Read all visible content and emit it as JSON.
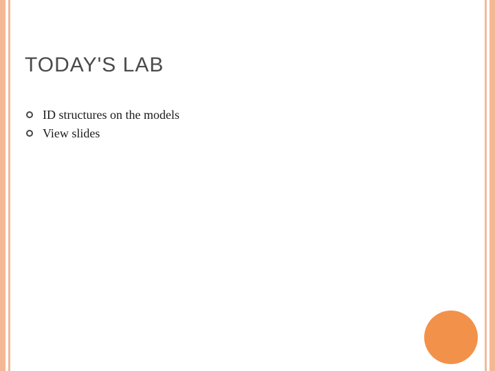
{
  "slide": {
    "title": "TODAY'S LAB",
    "bullets": [
      {
        "text": "ID structures on the models"
      },
      {
        "text": "View slides"
      }
    ]
  },
  "style": {
    "border_color": "#f5b896",
    "circle_color": "#f2924a",
    "title_color": "#4a4a4a",
    "title_fontsize": 30,
    "title_font": "Arial",
    "body_color": "#1a1a1a",
    "body_fontsize": 18,
    "body_font": "Georgia",
    "bullet_ring_color": "#444444",
    "background_color": "#ffffff"
  }
}
